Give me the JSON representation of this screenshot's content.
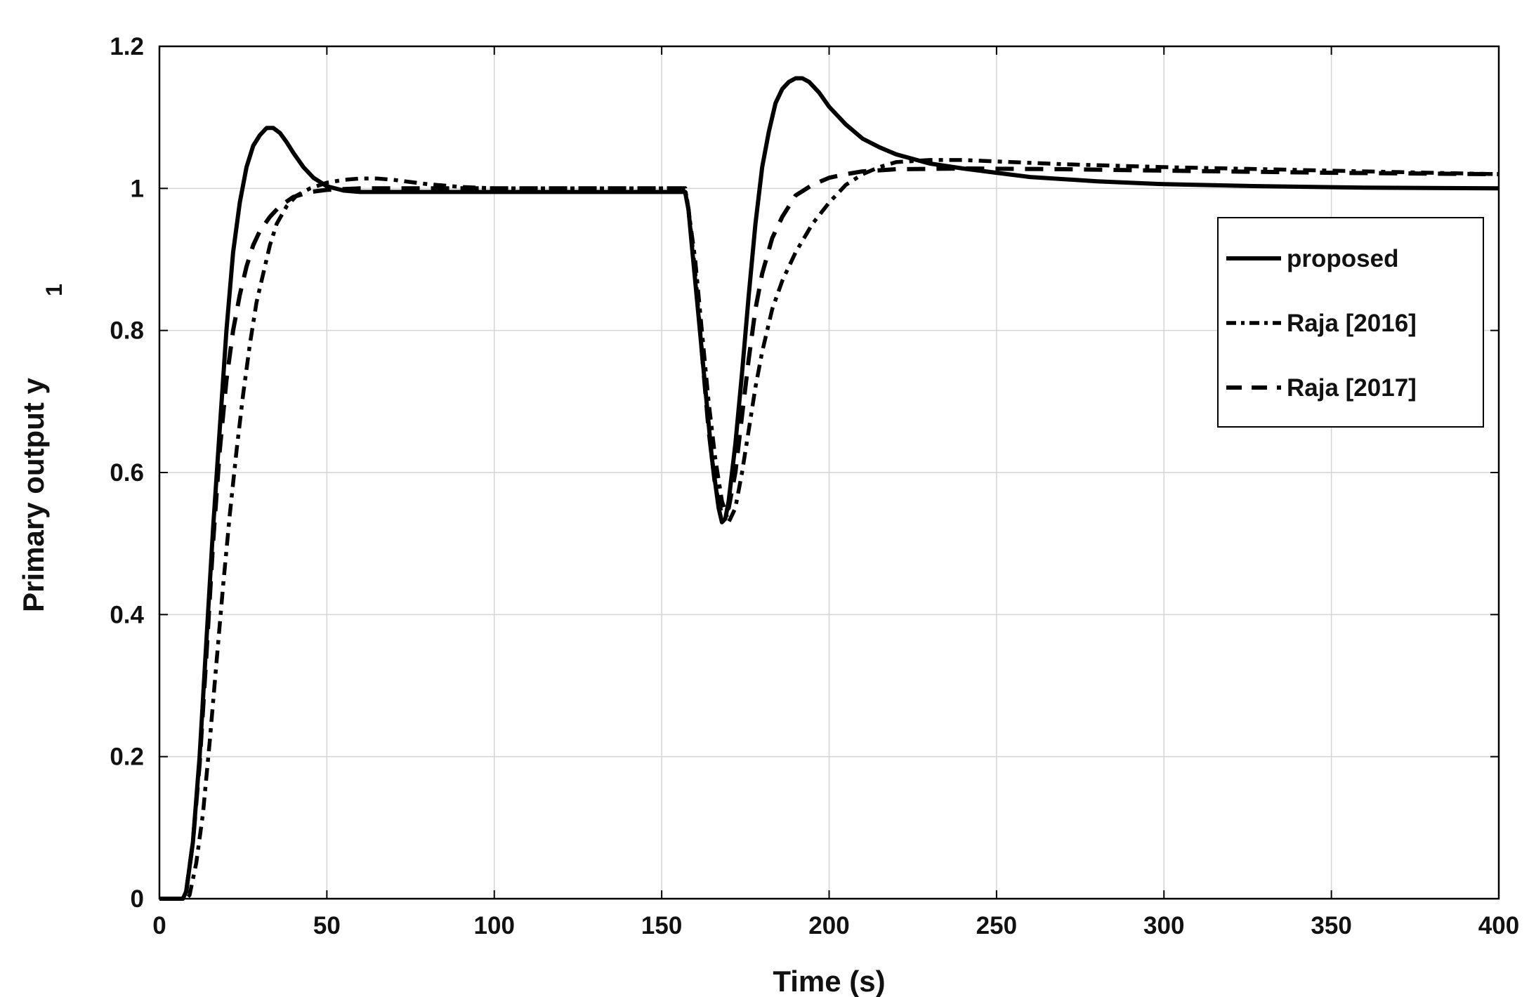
{
  "chart_data": {
    "type": "line",
    "xlabel": "Time (s)",
    "ylabel": "Primary output y",
    "ylabel_subscript": "1",
    "xlim": [
      0,
      400
    ],
    "ylim": [
      0,
      1.2
    ],
    "xticks": [
      0,
      50,
      100,
      150,
      200,
      250,
      300,
      350,
      400
    ],
    "xtick_labels": [
      "0",
      "50",
      "100",
      "150",
      "200",
      "250",
      "300",
      "350",
      "400"
    ],
    "yticks": [
      0,
      0.2,
      0.4,
      0.6,
      0.8,
      1.0,
      1.2
    ],
    "ytick_labels": [
      "0",
      "0.2",
      "0.4",
      "0.6",
      "0.8",
      "1",
      "1.2"
    ],
    "grid": true,
    "legend_position": "right",
    "series": [
      {
        "name": "proposed",
        "style": "solid",
        "color": "#000000",
        "points": [
          [
            0,
            0
          ],
          [
            7,
            0
          ],
          [
            8,
            0.01
          ],
          [
            10,
            0.08
          ],
          [
            12,
            0.2
          ],
          [
            14,
            0.36
          ],
          [
            16,
            0.52
          ],
          [
            18,
            0.66
          ],
          [
            20,
            0.8
          ],
          [
            22,
            0.91
          ],
          [
            24,
            0.98
          ],
          [
            26,
            1.03
          ],
          [
            28,
            1.06
          ],
          [
            30,
            1.075
          ],
          [
            32,
            1.085
          ],
          [
            34,
            1.085
          ],
          [
            36,
            1.078
          ],
          [
            38,
            1.065
          ],
          [
            40,
            1.05
          ],
          [
            43,
            1.03
          ],
          [
            46,
            1.015
          ],
          [
            50,
            1.003
          ],
          [
            55,
            0.997
          ],
          [
            60,
            0.995
          ],
          [
            80,
            0.995
          ],
          [
            100,
            0.995
          ],
          [
            157,
            0.995
          ],
          [
            158,
            0.97
          ],
          [
            159,
            0.92
          ],
          [
            161,
            0.82
          ],
          [
            163,
            0.72
          ],
          [
            165,
            0.62
          ],
          [
            167,
            0.55
          ],
          [
            168,
            0.53
          ],
          [
            169,
            0.535
          ],
          [
            170,
            0.56
          ],
          [
            172,
            0.64
          ],
          [
            174,
            0.74
          ],
          [
            176,
            0.85
          ],
          [
            178,
            0.95
          ],
          [
            180,
            1.03
          ],
          [
            182,
            1.08
          ],
          [
            184,
            1.12
          ],
          [
            186,
            1.14
          ],
          [
            188,
            1.15
          ],
          [
            190,
            1.155
          ],
          [
            192,
            1.155
          ],
          [
            194,
            1.15
          ],
          [
            197,
            1.135
          ],
          [
            200,
            1.115
          ],
          [
            205,
            1.09
          ],
          [
            210,
            1.07
          ],
          [
            215,
            1.058
          ],
          [
            220,
            1.048
          ],
          [
            230,
            1.035
          ],
          [
            240,
            1.028
          ],
          [
            250,
            1.022
          ],
          [
            260,
            1.016
          ],
          [
            280,
            1.01
          ],
          [
            300,
            1.006
          ],
          [
            330,
            1.003
          ],
          [
            360,
            1.001
          ],
          [
            400,
            1.0
          ]
        ]
      },
      {
        "name": "Raja [2016]",
        "style": "dash-dot",
        "color": "#000000",
        "points": [
          [
            0,
            0
          ],
          [
            8,
            0
          ],
          [
            9,
            0.005
          ],
          [
            11,
            0.05
          ],
          [
            13,
            0.12
          ],
          [
            15,
            0.22
          ],
          [
            17,
            0.33
          ],
          [
            19,
            0.44
          ],
          [
            21,
            0.54
          ],
          [
            23,
            0.63
          ],
          [
            25,
            0.71
          ],
          [
            27,
            0.78
          ],
          [
            29,
            0.84
          ],
          [
            31,
            0.88
          ],
          [
            33,
            0.92
          ],
          [
            35,
            0.95
          ],
          [
            38,
            0.975
          ],
          [
            41,
            0.99
          ],
          [
            45,
            1.0
          ],
          [
            50,
            1.008
          ],
          [
            55,
            1.012
          ],
          [
            60,
            1.014
          ],
          [
            65,
            1.014
          ],
          [
            70,
            1.012
          ],
          [
            80,
            1.006
          ],
          [
            90,
            1.002
          ],
          [
            100,
            1.0
          ],
          [
            157,
            1.0
          ],
          [
            158,
            0.97
          ],
          [
            160,
            0.9
          ],
          [
            162,
            0.8
          ],
          [
            164,
            0.7
          ],
          [
            166,
            0.62
          ],
          [
            168,
            0.56
          ],
          [
            170,
            0.53
          ],
          [
            172,
            0.55
          ],
          [
            174,
            0.6
          ],
          [
            176,
            0.66
          ],
          [
            178,
            0.72
          ],
          [
            180,
            0.77
          ],
          [
            183,
            0.83
          ],
          [
            186,
            0.87
          ],
          [
            190,
            0.91
          ],
          [
            195,
            0.95
          ],
          [
            200,
            0.98
          ],
          [
            205,
            1.005
          ],
          [
            210,
            1.02
          ],
          [
            215,
            1.03
          ],
          [
            220,
            1.037
          ],
          [
            230,
            1.04
          ],
          [
            240,
            1.04
          ],
          [
            250,
            1.038
          ],
          [
            270,
            1.034
          ],
          [
            300,
            1.03
          ],
          [
            330,
            1.027
          ],
          [
            360,
            1.024
          ],
          [
            400,
            1.02
          ]
        ]
      },
      {
        "name": "Raja [2017]",
        "style": "dashed",
        "color": "#000000",
        "points": [
          [
            0,
            0
          ],
          [
            7,
            0
          ],
          [
            8,
            0.01
          ],
          [
            10,
            0.08
          ],
          [
            12,
            0.19
          ],
          [
            14,
            0.34
          ],
          [
            16,
            0.5
          ],
          [
            18,
            0.63
          ],
          [
            20,
            0.73
          ],
          [
            22,
            0.8
          ],
          [
            24,
            0.85
          ],
          [
            26,
            0.89
          ],
          [
            28,
            0.92
          ],
          [
            30,
            0.94
          ],
          [
            33,
            0.96
          ],
          [
            36,
            0.975
          ],
          [
            40,
            0.988
          ],
          [
            45,
            0.995
          ],
          [
            50,
            0.998
          ],
          [
            60,
            1.0
          ],
          [
            100,
            1.0
          ],
          [
            157,
            1.0
          ],
          [
            158,
            0.97
          ],
          [
            160,
            0.88
          ],
          [
            162,
            0.77
          ],
          [
            164,
            0.66
          ],
          [
            166,
            0.58
          ],
          [
            168,
            0.54
          ],
          [
            170,
            0.55
          ],
          [
            172,
            0.6
          ],
          [
            174,
            0.68
          ],
          [
            176,
            0.76
          ],
          [
            178,
            0.83
          ],
          [
            180,
            0.88
          ],
          [
            183,
            0.93
          ],
          [
            186,
            0.96
          ],
          [
            190,
            0.99
          ],
          [
            195,
            1.005
          ],
          [
            200,
            1.015
          ],
          [
            205,
            1.02
          ],
          [
            210,
            1.024
          ],
          [
            220,
            1.027
          ],
          [
            240,
            1.028
          ],
          [
            270,
            1.027
          ],
          [
            300,
            1.025
          ],
          [
            350,
            1.022
          ],
          [
            400,
            1.02
          ]
        ]
      }
    ]
  }
}
